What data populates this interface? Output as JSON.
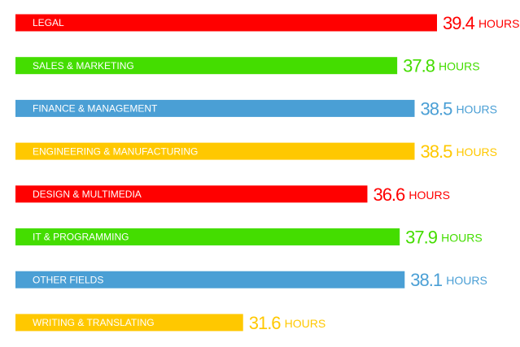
{
  "chart_data": {
    "type": "bar",
    "orientation": "horizontal",
    "categories": [
      "LEGAL",
      "SALES & MARKETING",
      "FINANCE & MANAGEMENT",
      "ENGINEERING & MANUFACTURING",
      "DESIGN & MULTIMEDIA",
      "IT & PROGRAMMING",
      "OTHER FIELDS",
      "WRITING & TRANSLATING"
    ],
    "values": [
      39.4,
      37.8,
      38.5,
      38.5,
      36.6,
      37.9,
      38.1,
      31.6
    ],
    "value_labels": [
      "39.4 HOURS",
      "37.8 HOURS",
      "38.5 HOURS",
      "38.5 HOURS",
      "36.6 HOURS",
      "37.9 HOURS",
      "38.1 HOURS",
      "31.6 HOURS"
    ],
    "colors": [
      "#ff0000",
      "#44dd00",
      "#4a9fd5",
      "#ffc800",
      "#ff0000",
      "#44dd00",
      "#4a9fd5",
      "#ffc800"
    ]
  }
}
